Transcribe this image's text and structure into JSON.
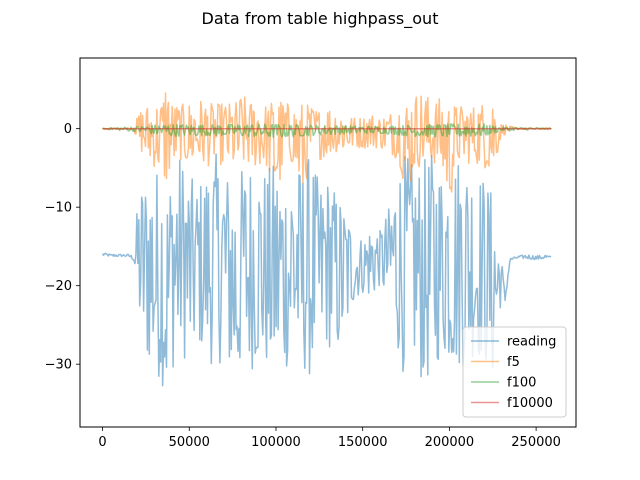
{
  "chart_data": {
    "type": "line",
    "title": "Data from table highpass_out",
    "xlabel": "",
    "ylabel": "",
    "xlim": [
      -13000,
      273000
    ],
    "ylim": [
      -38,
      9
    ],
    "x_ticks": [
      {
        "value": 0,
        "label": "0"
      },
      {
        "value": 50000,
        "label": "50000"
      },
      {
        "value": 100000,
        "label": "100000"
      },
      {
        "value": 150000,
        "label": "150000"
      },
      {
        "value": 200000,
        "label": "200000"
      },
      {
        "value": 250000,
        "label": "250000"
      }
    ],
    "y_ticks": [
      {
        "value": 0,
        "label": "0"
      },
      {
        "value": -10,
        "label": "−10"
      },
      {
        "value": -20,
        "label": "−20"
      },
      {
        "value": -30,
        "label": "−30"
      }
    ],
    "grid": false,
    "legend_position": "lower-right",
    "series": [
      {
        "name": "reading",
        "color": "#1f77b4",
        "alpha": 0.5,
        "x": [
          0,
          5000,
          10000,
          15000,
          18000,
          20000,
          22000,
          25000,
          30000,
          35000,
          36000,
          40000,
          45000,
          50000,
          55000,
          60000,
          65000,
          70000,
          75000,
          78000,
          80000,
          85000,
          90000,
          95000,
          100000,
          105000,
          110000,
          115000,
          120000,
          125000,
          130000,
          135000,
          140000,
          145000,
          150000,
          155000,
          160000,
          165000,
          170000,
          172000,
          175000,
          180000,
          185000,
          190000,
          195000,
          200000,
          205000,
          210000,
          215000,
          220000,
          225000,
          228000,
          230000,
          232000,
          235000,
          240000,
          245000,
          250000,
          255000,
          259000
        ],
        "y_high": [
          -15.8,
          -16.0,
          -16.0,
          -16.0,
          -16.2,
          -10,
          -7,
          -6,
          -5,
          -4.5,
          -8,
          -5,
          -3,
          -6,
          -7,
          -5,
          -3,
          -5,
          -6,
          -7,
          -5,
          -4,
          -5,
          -5,
          -4,
          -6,
          -4,
          -5,
          -3,
          -7,
          -6,
          -8,
          -10,
          -13,
          -14,
          -12,
          -13,
          -10,
          -5,
          -4,
          -3,
          -5,
          -4,
          -3,
          -5,
          -4,
          -3,
          -4,
          -5,
          -6,
          -8,
          -14,
          -16,
          -21,
          -16.5,
          -16.2,
          -16.0,
          -16.2,
          -16.0,
          -16.3
        ],
        "y_low": [
          -16.2,
          -16.3,
          -16.3,
          -16.3,
          -16.8,
          -22,
          -27,
          -30,
          -31,
          -33,
          -36,
          -31,
          -29,
          -30,
          -28,
          -29,
          -31,
          -29,
          -33,
          -33.5,
          -30,
          -31,
          -30,
          -31,
          -32,
          -31,
          -30,
          -31,
          -32,
          -29,
          -28,
          -29,
          -27,
          -22,
          -21,
          -22,
          -20,
          -23,
          -28,
          -31,
          -31,
          -30,
          -33,
          -32,
          -29,
          -30,
          -31,
          -30,
          -29,
          -30,
          -32,
          -25,
          -22,
          -22.5,
          -16.8,
          -16.5,
          -16.6,
          -16.7,
          -16.6,
          -16.8
        ]
      },
      {
        "name": "f5",
        "color": "#ff7f0e",
        "alpha": 0.5,
        "x": [
          0,
          5000,
          10000,
          15000,
          18000,
          20000,
          22000,
          25000,
          30000,
          35000,
          36000,
          40000,
          45000,
          50000,
          55000,
          60000,
          65000,
          70000,
          75000,
          78000,
          80000,
          85000,
          90000,
          95000,
          100000,
          105000,
          110000,
          115000,
          120000,
          125000,
          130000,
          135000,
          140000,
          145000,
          150000,
          155000,
          160000,
          165000,
          170000,
          172000,
          175000,
          180000,
          185000,
          190000,
          195000,
          200000,
          205000,
          210000,
          215000,
          220000,
          225000,
          228000,
          230000,
          232000,
          235000,
          240000,
          245000,
          250000,
          255000,
          259000
        ],
        "y_high": [
          0.1,
          0.1,
          0.1,
          0.1,
          0.1,
          1.5,
          2.5,
          3.0,
          3.2,
          4.0,
          6.8,
          3.5,
          3.0,
          3.5,
          4.0,
          3.5,
          3.0,
          3.5,
          3.2,
          3.8,
          4.5,
          3.5,
          4.0,
          3.0,
          4.5,
          3.5,
          3.0,
          3.5,
          3.0,
          2.5,
          3.0,
          2.5,
          2.0,
          1.5,
          1.5,
          2.0,
          1.5,
          2.0,
          3.0,
          3.5,
          4.0,
          4.5,
          5.0,
          3.5,
          4.0,
          3.5,
          3.0,
          3.0,
          3.0,
          3.5,
          4.5,
          1.5,
          0.6,
          0.6,
          0.3,
          0.1,
          0.1,
          0.1,
          0.1,
          0.1
        ],
        "y_low": [
          -0.1,
          -0.1,
          -0.1,
          -0.1,
          -0.1,
          -2.0,
          -3.0,
          -4.0,
          -5.0,
          -6.0,
          -8.0,
          -5.0,
          -4.0,
          -5.0,
          -4.5,
          -5.0,
          -4.0,
          -5.0,
          -5.0,
          -6.0,
          -5.0,
          -5.0,
          -5.0,
          -5.0,
          -9.5,
          -5.0,
          -4.5,
          -9.5,
          -4.0,
          -4.0,
          -3.5,
          -3.0,
          -3.0,
          -2.5,
          -2.5,
          -2.5,
          -2.5,
          -3.0,
          -4.0,
          -5.0,
          -9.8,
          -5.0,
          -5.0,
          -4.5,
          -5.0,
          -9.8,
          -4.5,
          -4.5,
          -4.5,
          -5.0,
          -6.0,
          -3.0,
          -0.8,
          -0.8,
          -0.3,
          -0.1,
          -0.1,
          -0.1,
          -0.1,
          -0.1
        ]
      },
      {
        "name": "f100",
        "color": "#2ca02c",
        "alpha": 0.5,
        "x": [
          0,
          20000,
          30000,
          40000,
          60000,
          80000,
          100000,
          120000,
          140000,
          160000,
          180000,
          200000,
          220000,
          230000,
          259000
        ],
        "y_high": [
          0.05,
          0.3,
          0.5,
          0.6,
          0.5,
          0.6,
          0.6,
          0.5,
          0.4,
          0.3,
          0.5,
          0.6,
          0.6,
          0.2,
          0.05
        ],
        "y_low": [
          -0.05,
          -0.4,
          -0.8,
          -1.0,
          -0.9,
          -1.0,
          -1.2,
          -0.9,
          -0.7,
          -0.6,
          -1.0,
          -1.1,
          -1.0,
          -0.3,
          -0.05
        ]
      },
      {
        "name": "f10000",
        "color": "#d62728",
        "alpha": 0.5,
        "x": [
          0,
          259000
        ],
        "y": [
          0,
          0
        ]
      }
    ]
  }
}
